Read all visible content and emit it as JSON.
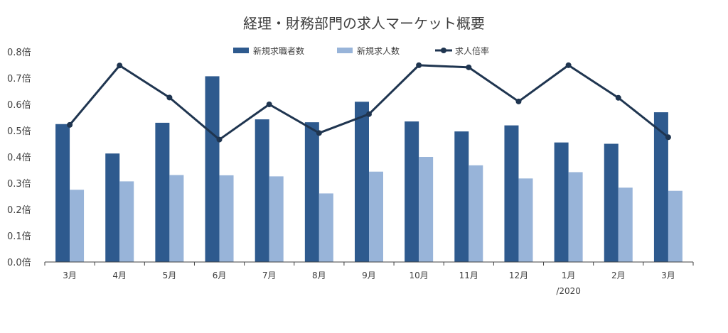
{
  "chart_data": {
    "type": "bar",
    "title": "経理・財務部門の求人マーケット概要",
    "xlabel": "",
    "ylabel": "",
    "ylim": [
      0,
      0.8
    ],
    "yticks": [
      "0.0倍",
      "0.1倍",
      "0.2倍",
      "0.3倍",
      "0.4倍",
      "0.5倍",
      "0.6倍",
      "0.7倍",
      "0.8倍"
    ],
    "categories": [
      "3月",
      "4月",
      "5月",
      "6月",
      "7月",
      "8月",
      "9月",
      "10月",
      "11月",
      "12月",
      "1月",
      "2月",
      "3月"
    ],
    "category_sublabels": [
      "",
      "",
      "",
      "",
      "",
      "",
      "",
      "",
      "",
      "",
      "/2020",
      "",
      ""
    ],
    "grid": false,
    "legend_position": "top-center",
    "series": [
      {
        "name": "新規求職者数",
        "kind": "bar",
        "color": "#2e5a8e",
        "values": [
          0.525,
          0.413,
          0.53,
          0.707,
          0.543,
          0.532,
          0.61,
          0.535,
          0.497,
          0.52,
          0.455,
          0.45,
          0.57
        ]
      },
      {
        "name": "新規求人数",
        "kind": "bar",
        "color": "#98b4d9",
        "values": [
          0.275,
          0.307,
          0.331,
          0.33,
          0.326,
          0.261,
          0.344,
          0.4,
          0.368,
          0.318,
          0.342,
          0.283,
          0.271
        ]
      },
      {
        "name": "求人倍率",
        "kind": "line",
        "color": "#1f3550",
        "values": [
          0.522,
          0.748,
          0.626,
          0.466,
          0.6,
          0.491,
          0.563,
          0.749,
          0.741,
          0.611,
          0.749,
          0.625,
          0.475
        ]
      }
    ]
  }
}
